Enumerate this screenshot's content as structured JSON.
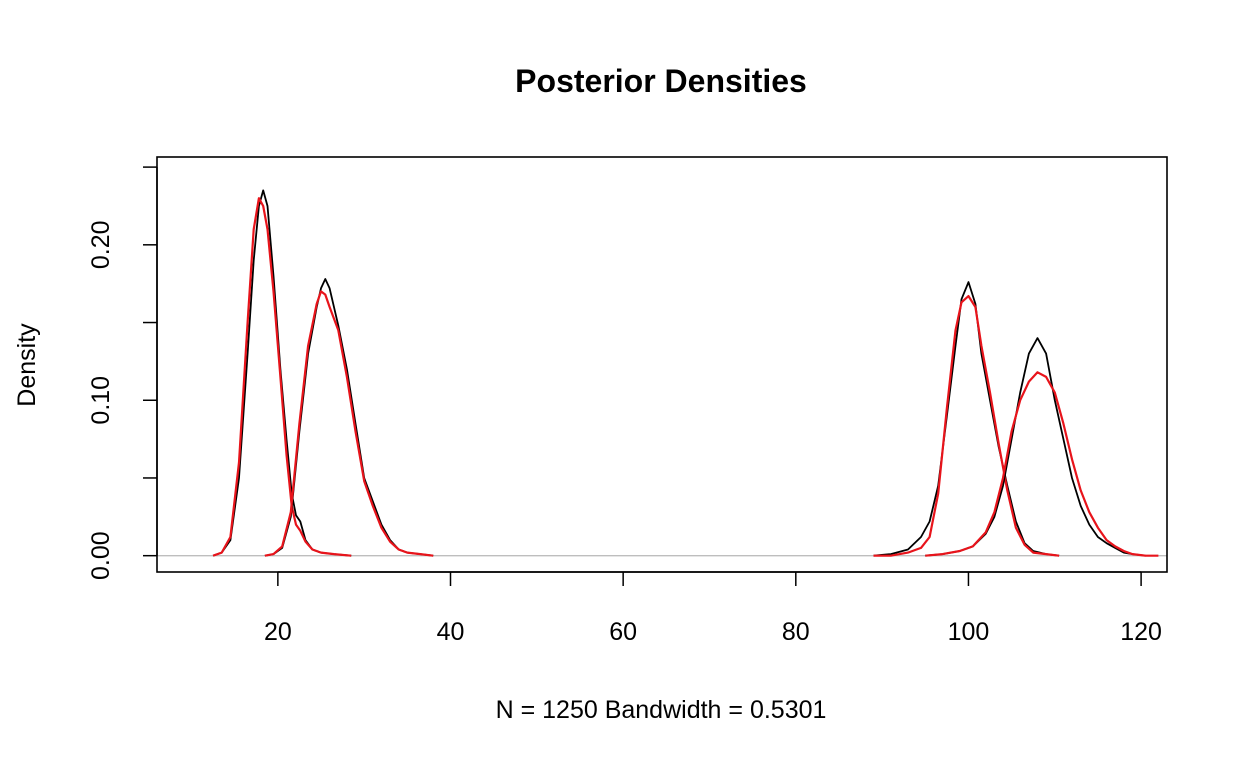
{
  "chart_data": {
    "type": "line",
    "title": "Posterior Densities",
    "xlabel": "N = 1250   Bandwidth = 0.5301",
    "ylabel": "Density",
    "xlim": [
      6,
      123
    ],
    "ylim": [
      -0.0105,
      0.2565
    ],
    "x_ticks": [
      20,
      40,
      60,
      80,
      100,
      120
    ],
    "y_ticks": [
      0.0,
      0.05,
      0.1,
      0.15,
      0.2,
      0.25
    ],
    "y_tick_labels": [
      "0.00",
      "",
      "0.10",
      "",
      "0.20",
      ""
    ],
    "baseline": 0,
    "grid": false,
    "legend": "none",
    "colors": {
      "black_series": "#000000",
      "red_series": "#e8141b",
      "baseline": "#bebebe"
    },
    "series": [
      {
        "color": "#000000",
        "x": [
          12.5,
          13.5,
          14.5,
          15.5,
          16.5,
          17.2,
          17.8,
          18.3,
          18.8,
          19.5,
          20.3,
          21.0,
          21.6,
          22.1,
          22.6,
          23.2,
          24.0,
          25.0,
          26.5,
          28.5
        ],
        "y": [
          0.0,
          0.002,
          0.01,
          0.05,
          0.13,
          0.19,
          0.225,
          0.235,
          0.225,
          0.18,
          0.12,
          0.075,
          0.04,
          0.026,
          0.022,
          0.01,
          0.004,
          0.002,
          0.001,
          0.0
        ]
      },
      {
        "color": "#e8141b",
        "x": [
          12.5,
          13.5,
          14.5,
          15.5,
          16.5,
          17.2,
          17.8,
          18.3,
          18.8,
          19.5,
          20.3,
          21.0,
          21.6,
          22.1,
          22.6,
          23.2,
          24.0,
          25.0,
          26.5,
          28.5
        ],
        "y": [
          0.0,
          0.002,
          0.012,
          0.06,
          0.15,
          0.21,
          0.23,
          0.225,
          0.21,
          0.17,
          0.115,
          0.065,
          0.032,
          0.02,
          0.016,
          0.009,
          0.004,
          0.002,
          0.001,
          0.0
        ]
      },
      {
        "color": "#000000",
        "x": [
          18.5,
          19.5,
          20.5,
          21.5,
          22.5,
          23.5,
          24.5,
          25.0,
          25.5,
          26.0,
          27.0,
          28.0,
          29.0,
          30.0,
          31.0,
          32.0,
          33.0,
          34.0,
          35.0,
          36.5,
          38.0
        ],
        "y": [
          0.0,
          0.001,
          0.005,
          0.025,
          0.08,
          0.13,
          0.16,
          0.172,
          0.178,
          0.172,
          0.148,
          0.12,
          0.085,
          0.05,
          0.035,
          0.02,
          0.01,
          0.004,
          0.002,
          0.001,
          0.0
        ]
      },
      {
        "color": "#e8141b",
        "x": [
          18.5,
          19.5,
          20.5,
          21.5,
          22.5,
          23.5,
          24.5,
          25.0,
          25.5,
          26.0,
          27.0,
          28.0,
          29.0,
          30.0,
          31.0,
          32.0,
          33.0,
          34.0,
          35.0,
          36.5,
          38.0
        ],
        "y": [
          0.0,
          0.001,
          0.006,
          0.028,
          0.085,
          0.135,
          0.162,
          0.17,
          0.168,
          0.16,
          0.145,
          0.115,
          0.08,
          0.048,
          0.032,
          0.018,
          0.009,
          0.004,
          0.002,
          0.001,
          0.0
        ]
      },
      {
        "color": "#000000",
        "x": [
          89.0,
          91.0,
          93.0,
          94.5,
          95.5,
          96.5,
          97.5,
          98.5,
          99.2,
          100.0,
          100.8,
          101.5,
          102.5,
          103.5,
          104.5,
          105.5,
          106.5,
          107.5,
          109.0,
          110.5
        ],
        "y": [
          0.0,
          0.001,
          0.004,
          0.012,
          0.022,
          0.045,
          0.09,
          0.135,
          0.165,
          0.176,
          0.162,
          0.13,
          0.1,
          0.07,
          0.045,
          0.022,
          0.008,
          0.003,
          0.001,
          0.0
        ]
      },
      {
        "color": "#e8141b",
        "x": [
          89.0,
          91.0,
          93.0,
          94.5,
          95.5,
          96.5,
          97.5,
          98.5,
          99.2,
          100.0,
          100.8,
          101.5,
          102.5,
          103.5,
          104.5,
          105.5,
          106.5,
          107.5,
          109.0,
          110.5
        ],
        "y": [
          0.0,
          0.0,
          0.002,
          0.005,
          0.012,
          0.04,
          0.095,
          0.145,
          0.163,
          0.167,
          0.16,
          0.135,
          0.105,
          0.072,
          0.042,
          0.018,
          0.007,
          0.002,
          0.001,
          0.0
        ]
      },
      {
        "color": "#000000",
        "x": [
          95.0,
          97.0,
          99.0,
          100.5,
          102.0,
          103.0,
          104.0,
          105.0,
          106.0,
          107.0,
          108.0,
          109.0,
          110.0,
          111.0,
          112.0,
          113.0,
          114.0,
          115.0,
          116.0,
          117.0,
          118.0,
          119.0,
          120.5
        ],
        "y": [
          0.0,
          0.001,
          0.003,
          0.006,
          0.014,
          0.025,
          0.045,
          0.075,
          0.105,
          0.13,
          0.14,
          0.13,
          0.1,
          0.075,
          0.05,
          0.032,
          0.02,
          0.012,
          0.008,
          0.005,
          0.002,
          0.001,
          0.0
        ]
      },
      {
        "color": "#e8141b",
        "x": [
          95.0,
          97.0,
          99.0,
          100.5,
          102.0,
          103.0,
          104.0,
          105.0,
          106.0,
          107.0,
          108.0,
          109.0,
          110.0,
          111.0,
          112.0,
          113.0,
          114.0,
          115.0,
          116.0,
          117.0,
          118.0,
          119.0,
          120.5,
          122.0
        ],
        "y": [
          0.0,
          0.001,
          0.003,
          0.006,
          0.015,
          0.028,
          0.05,
          0.08,
          0.1,
          0.112,
          0.118,
          0.115,
          0.105,
          0.085,
          0.062,
          0.042,
          0.028,
          0.018,
          0.01,
          0.006,
          0.003,
          0.001,
          0.0,
          0.0
        ]
      }
    ]
  }
}
